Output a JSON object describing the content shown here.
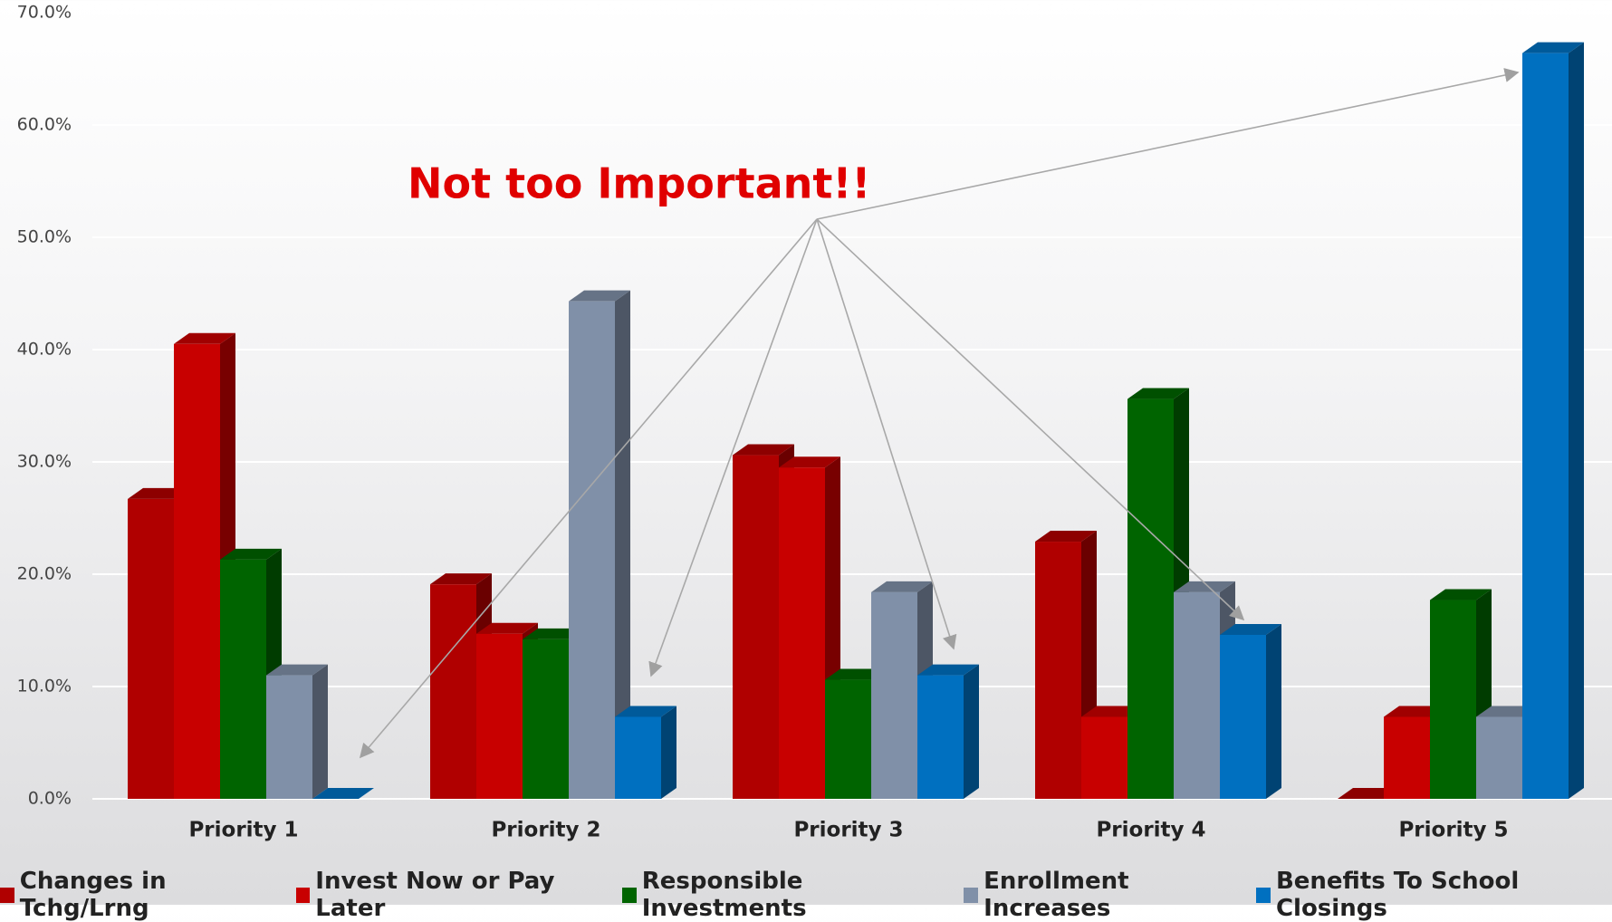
{
  "chart_data": {
    "type": "bar3d",
    "annotation": "Not too Important!!",
    "categories": [
      "Priority 1",
      "Priority 2",
      "Priority 3",
      "Priority 4",
      "Priority 5"
    ],
    "series": [
      {
        "name": "Changes in Tchg/Lrng",
        "color": "#b00000",
        "values": [
          26.7,
          19.1,
          30.6,
          22.9,
          0
        ]
      },
      {
        "name": "Invest Now or Pay Later",
        "color": "#c80000",
        "values": [
          40.5,
          14.7,
          29.5,
          7.3,
          7.3
        ]
      },
      {
        "name": "Responsible Investments",
        "color": "#006400",
        "values": [
          21.3,
          14.2,
          10.6,
          35.6,
          17.7
        ]
      },
      {
        "name": "Enrollment Increases",
        "color": "#8090a8",
        "values": [
          11.0,
          44.3,
          18.4,
          18.4,
          7.3
        ]
      },
      {
        "name": "Benefits To School Closings",
        "color": "#0070c0",
        "values": [
          0,
          7.3,
          11.0,
          14.6,
          66.4
        ]
      }
    ],
    "ylim": [
      0,
      70
    ],
    "yticks": [
      {
        "value": 0,
        "label": "0.0%"
      },
      {
        "value": 10,
        "label": "10.0%"
      },
      {
        "value": 20,
        "label": "20.0%"
      },
      {
        "value": 30,
        "label": "30.0%"
      },
      {
        "value": 40,
        "label": "40.0%"
      },
      {
        "value": 50,
        "label": "50.0%"
      },
      {
        "value": 60,
        "label": "60.0%"
      },
      {
        "value": 70,
        "label": "70.0%"
      }
    ],
    "grid": true
  }
}
